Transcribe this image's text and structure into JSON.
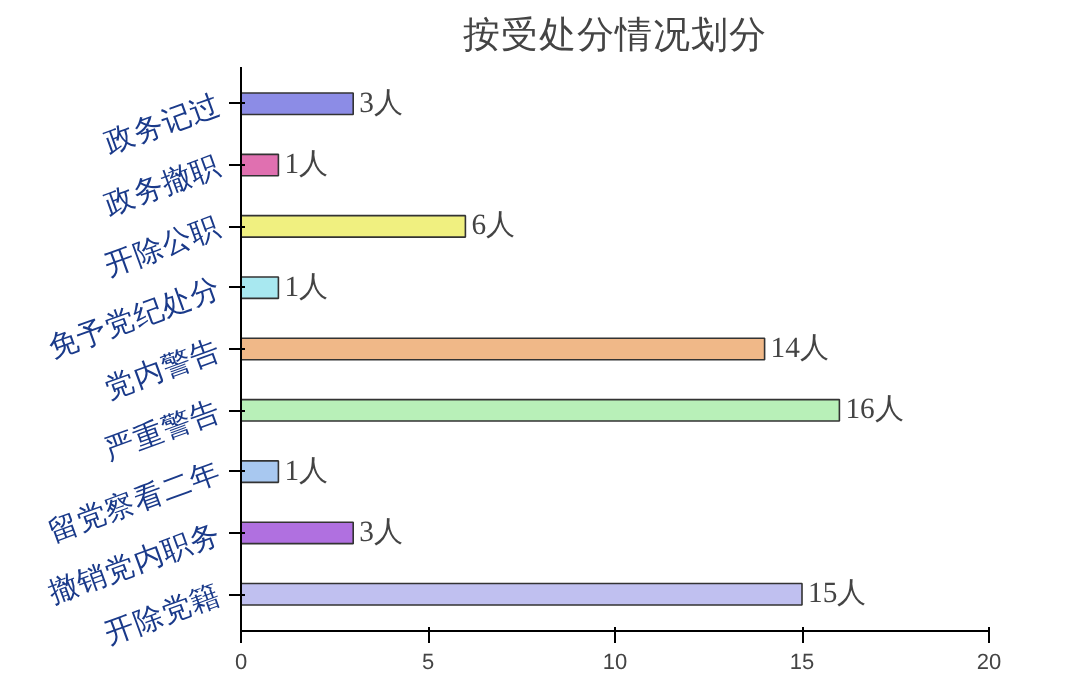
{
  "chart_data": {
    "type": "bar",
    "orientation": "horizontal",
    "title": "按受处分情况划分",
    "categories": [
      "政务记过",
      "政务撤职",
      "开除公职",
      "免予党纪处分",
      "党内警告",
      "严重警告",
      "留党察看二年",
      "撤销党内职务",
      "开除党籍"
    ],
    "values": [
      3,
      1,
      6,
      1,
      14,
      16,
      1,
      3,
      15
    ],
    "colors": [
      "#8c8ce6",
      "#e070b0",
      "#f0f080",
      "#a8e8f0",
      "#f0b888",
      "#b8f0b8",
      "#a8c8f0",
      "#b070e0",
      "#c0c0f0"
    ],
    "value_labels": [
      "3人",
      "1人",
      "6人",
      "1人",
      "14人",
      "16人",
      "1人",
      "3人",
      "15人"
    ],
    "xlim": [
      0,
      20
    ],
    "xticks": [
      0,
      5,
      10,
      15,
      20
    ],
    "grid": false
  }
}
